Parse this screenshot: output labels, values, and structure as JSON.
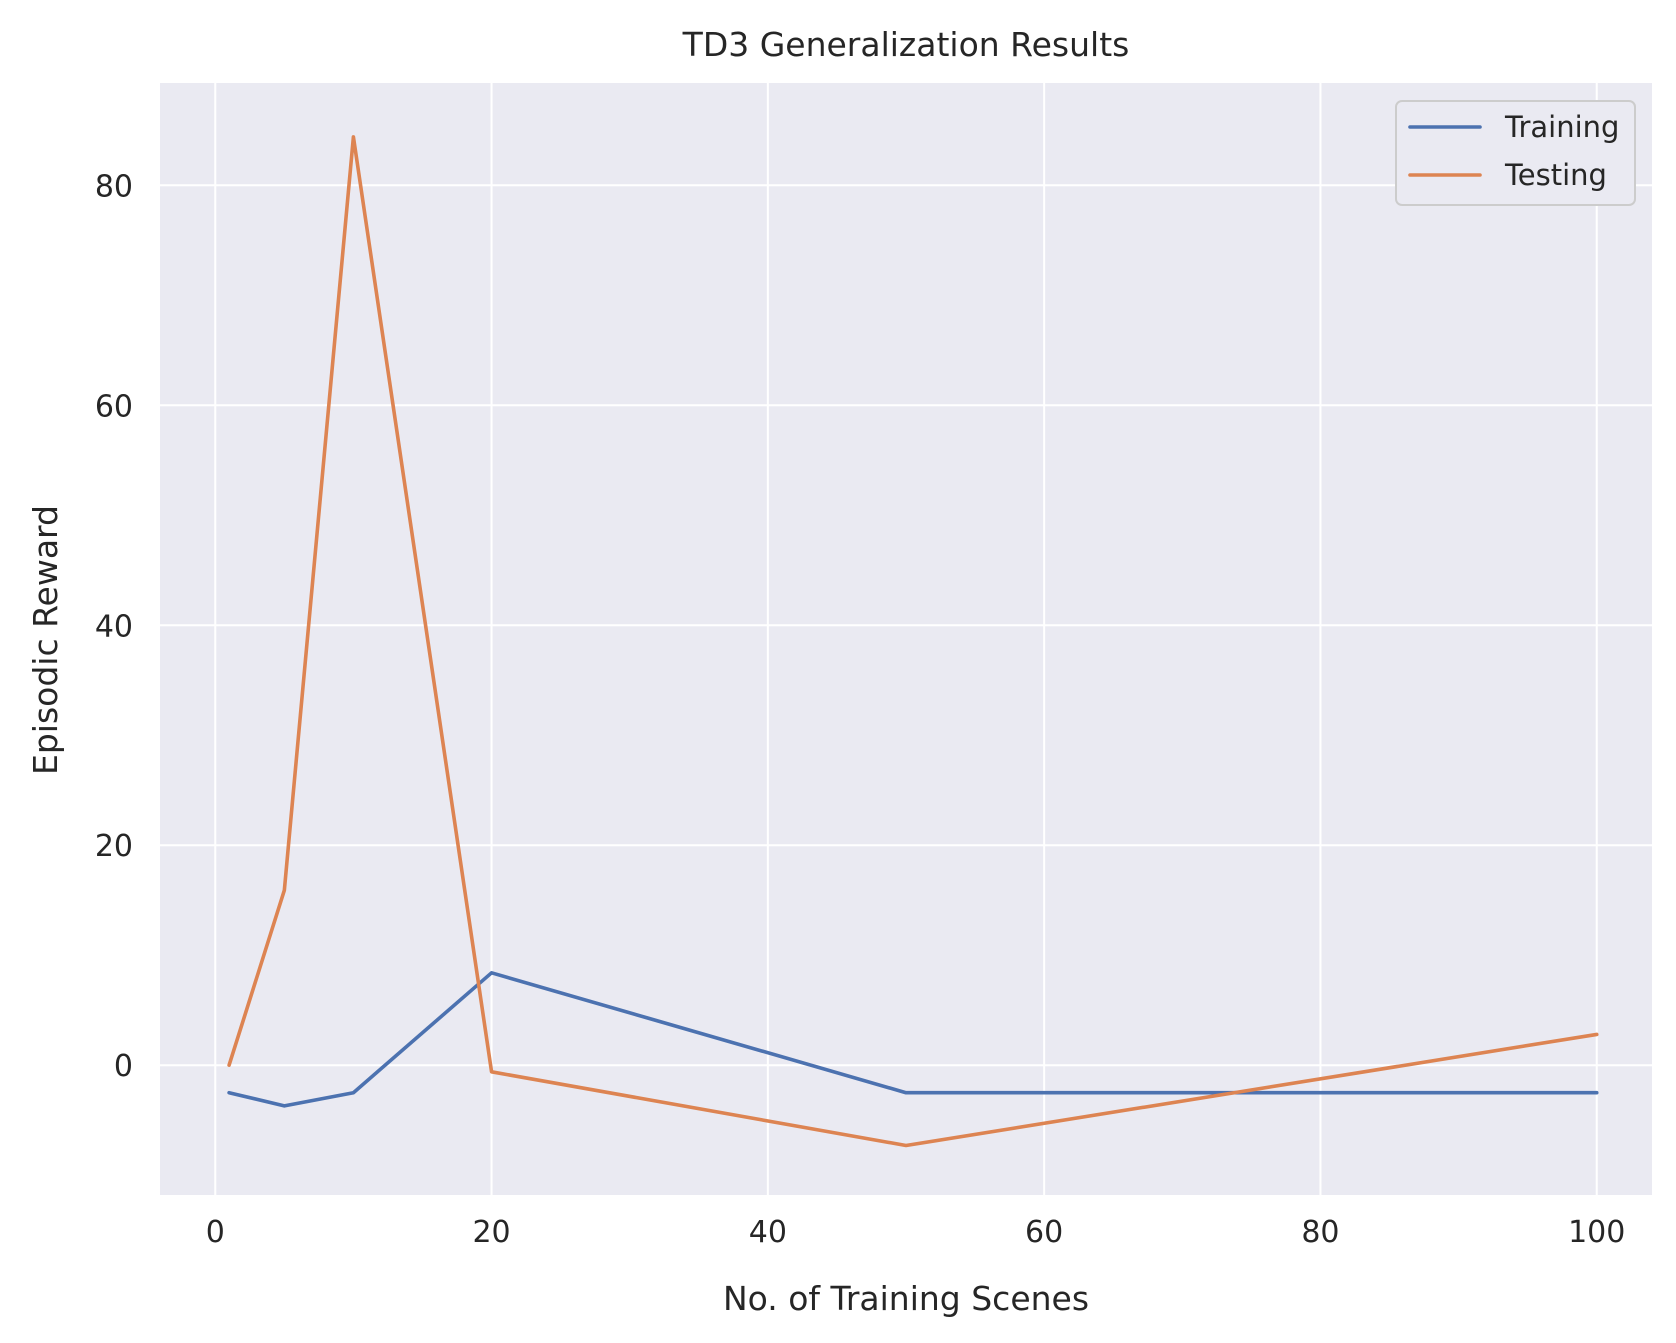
{
  "chart_data": {
    "type": "line",
    "title": "TD3 Generalization Results",
    "xlabel": "No. of Training Scenes",
    "ylabel": "Episodic Reward",
    "x": [
      1,
      5,
      10,
      20,
      50,
      100
    ],
    "series": [
      {
        "name": "Training",
        "color": "#4c72b0",
        "values": [
          -2.5,
          -3.7,
          -2.5,
          8.4,
          -2.5,
          -2.5
        ]
      },
      {
        "name": "Testing",
        "color": "#dd8452",
        "values": [
          0.0,
          15.9,
          84.4,
          -0.6,
          -7.3,
          2.8
        ]
      }
    ],
    "xlim": [
      -4,
      104
    ],
    "ylim": [
      -11.8,
      89.3
    ],
    "xticks": [
      0,
      20,
      40,
      60,
      80,
      100
    ],
    "yticks": [
      0,
      20,
      40,
      60,
      80
    ],
    "grid": true,
    "legend_position": "upper right",
    "background_color": "#eaeaf2",
    "grid_color": "#ffffff"
  }
}
